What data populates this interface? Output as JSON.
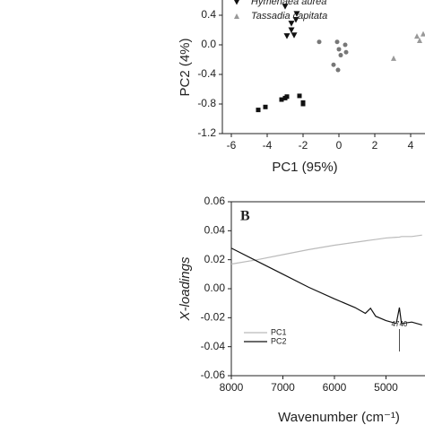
{
  "chart_data": [
    {
      "type": "scatter",
      "xlabel": "PC1 (95%)",
      "ylabel": "PC2 (4%)",
      "xlim": [
        -6.5,
        6
      ],
      "ylim": [
        -1.2,
        0.8
      ],
      "xticks": [
        -6,
        -4,
        -2,
        0,
        2,
        4
      ],
      "yticks": [
        0.4,
        {
          "value": 0,
          "label": "0.0"
        },
        -0.4,
        -0.8,
        -1.2
      ],
      "series": [
        {
          "color": "#111111",
          "marker": "square",
          "x": [
            -4.5,
            -4.1,
            -3.2,
            -3.0,
            -2.9,
            -2.2,
            -2.0,
            -2.0
          ],
          "values": [
            -0.88,
            -0.84,
            -0.74,
            -0.72,
            -0.7,
            -0.69,
            -0.78,
            -0.8
          ]
        },
        {
          "name": "Hymenaea aurea",
          "color": "#111111",
          "marker": "triangle-down",
          "x": [
            -3.0,
            -2.35,
            -2.4,
            -2.65,
            -2.65,
            -2.9,
            -2.5
          ],
          "values": [
            0.52,
            0.42,
            0.34,
            0.29,
            0.2,
            0.12,
            0.13
          ]
        },
        {
          "color": "#777777",
          "marker": "circle",
          "x": [
            -1.1,
            -0.1,
            0.0,
            0.1,
            0.35,
            0.4,
            -0.3,
            -0.05
          ],
          "values": [
            0.04,
            0.04,
            -0.06,
            -0.14,
            0.0,
            -0.1,
            -0.27,
            -0.34
          ]
        },
        {
          "name": "Tassadia capitata",
          "color": "#999999",
          "marker": "triangle-up",
          "x": [
            3.05,
            4.35,
            4.5,
            4.7
          ],
          "values": [
            -0.18,
            0.12,
            0.06,
            0.15
          ]
        }
      ]
    },
    {
      "type": "line",
      "panel_label": "B",
      "xlabel": "Wavenumber (cm⁻¹)",
      "ylabel": "X-loadings",
      "xlim": [
        8000,
        3800
      ],
      "ylim": [
        -0.06,
        0.06
      ],
      "xticks": [
        8000,
        7000,
        6000,
        5000
      ],
      "yticks": [
        0.06,
        0.04,
        0.02,
        {
          "value": 0,
          "label": "0.00"
        },
        -0.02,
        -0.04,
        -0.06
      ],
      "annotation": {
        "text": "4740",
        "x": 4740
      },
      "x": [
        8000,
        7500,
        7000,
        6500,
        6000,
        5600,
        5400,
        5300,
        5200,
        5000,
        4800,
        4740,
        4700,
        4500,
        4300
      ],
      "series": [
        {
          "name": "PC1",
          "color": "#bbbbbb",
          "values": [
            0.017,
            0.02,
            0.0235,
            0.027,
            0.03,
            0.032,
            0.033,
            0.0335,
            0.034,
            0.035,
            0.0355,
            0.0356,
            0.036,
            0.036,
            0.037
          ]
        },
        {
          "name": "PC2",
          "color": "#111111",
          "values": [
            0.028,
            0.019,
            0.01,
            0.001,
            -0.007,
            -0.013,
            -0.017,
            -0.0135,
            -0.019,
            -0.022,
            -0.024,
            -0.013,
            -0.024,
            -0.023,
            -0.025
          ]
        }
      ]
    }
  ]
}
